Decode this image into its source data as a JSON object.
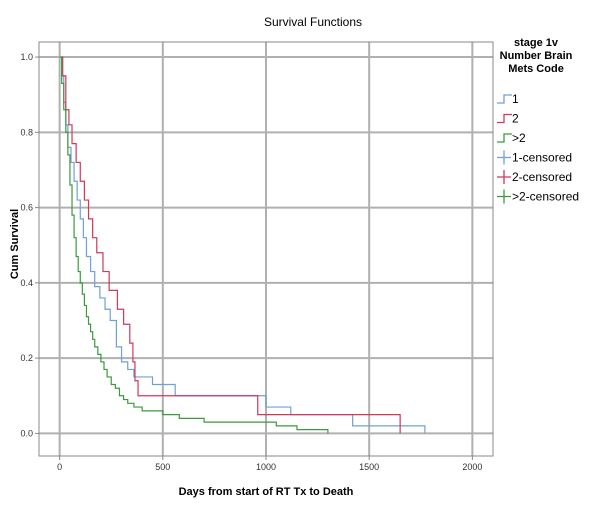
{
  "chart_data": {
    "type": "line",
    "title": "Survival Functions",
    "xlabel": "Days from start of RT Tx to Death",
    "ylabel": "Cum Survival",
    "xlim": [
      -100,
      2100
    ],
    "ylim": [
      -0.06,
      1.04
    ],
    "x_ticks": [
      0,
      500,
      1000,
      1500,
      2000
    ],
    "y_ticks": [
      0.0,
      0.2,
      0.4,
      0.6,
      0.8,
      1.0
    ],
    "x_tick_labels": [
      "0",
      "500",
      "1000",
      "1500",
      "2000"
    ],
    "y_tick_labels": [
      "0.0",
      "0.2",
      "0.4",
      "0.6",
      "0.8",
      "1.0"
    ],
    "grid": true,
    "legend": {
      "title": "stage 1v Number Brain Mets Code",
      "title_lines": [
        "stage 1v",
        "Number Brain",
        "Mets Code"
      ],
      "placement": "right",
      "entries": [
        {
          "label": "1",
          "kind": "step",
          "color": "#6fa0d8"
        },
        {
          "label": "2",
          "kind": "step",
          "color": "#d0385c"
        },
        {
          "label": ">2",
          "kind": "step",
          "color": "#3c9a3c"
        },
        {
          "label": "1-censored",
          "kind": "censor",
          "color": "#6fa0d8"
        },
        {
          "label": "2-censored",
          "kind": "censor",
          "color": "#d0385c"
        },
        {
          "label": ">2-censored",
          "kind": "censor",
          "color": "#3c9a3c"
        }
      ]
    },
    "series": [
      {
        "name": "1",
        "color": "#6fa0d8",
        "points": [
          [
            0,
            1.0
          ],
          [
            10,
            0.95
          ],
          [
            20,
            0.88
          ],
          [
            30,
            0.82
          ],
          [
            40,
            0.76
          ],
          [
            55,
            0.72
          ],
          [
            70,
            0.67
          ],
          [
            85,
            0.62
          ],
          [
            100,
            0.57
          ],
          [
            115,
            0.52
          ],
          [
            130,
            0.47
          ],
          [
            150,
            0.43
          ],
          [
            170,
            0.39
          ],
          [
            195,
            0.36
          ],
          [
            220,
            0.33
          ],
          [
            245,
            0.3
          ],
          [
            275,
            0.23
          ],
          [
            300,
            0.19
          ],
          [
            330,
            0.17
          ],
          [
            360,
            0.15
          ],
          [
            420,
            0.15
          ],
          [
            450,
            0.13
          ],
          [
            520,
            0.13
          ],
          [
            560,
            0.1
          ],
          [
            960,
            0.1
          ],
          [
            1000,
            0.07
          ],
          [
            1080,
            0.07
          ],
          [
            1120,
            0.05
          ],
          [
            1380,
            0.05
          ],
          [
            1420,
            0.02
          ],
          [
            1770,
            0.02
          ],
          [
            1770,
            0.0
          ]
        ]
      },
      {
        "name": "2",
        "color": "#d0385c",
        "points": [
          [
            0,
            1.0
          ],
          [
            15,
            0.95
          ],
          [
            30,
            0.86
          ],
          [
            45,
            0.82
          ],
          [
            60,
            0.77
          ],
          [
            80,
            0.72
          ],
          [
            100,
            0.67
          ],
          [
            120,
            0.62
          ],
          [
            140,
            0.57
          ],
          [
            160,
            0.52
          ],
          [
            180,
            0.48
          ],
          [
            210,
            0.43
          ],
          [
            240,
            0.38
          ],
          [
            280,
            0.33
          ],
          [
            310,
            0.29
          ],
          [
            340,
            0.24
          ],
          [
            355,
            0.19
          ],
          [
            365,
            0.14
          ],
          [
            380,
            0.1
          ],
          [
            960,
            0.1
          ],
          [
            960,
            0.05
          ],
          [
            1650,
            0.05
          ],
          [
            1650,
            0.0
          ]
        ]
      },
      {
        "name": ">2",
        "color": "#3c9a3c",
        "points": [
          [
            0,
            1.0
          ],
          [
            10,
            0.93
          ],
          [
            20,
            0.86
          ],
          [
            30,
            0.8
          ],
          [
            40,
            0.74
          ],
          [
            50,
            0.66
          ],
          [
            60,
            0.58
          ],
          [
            70,
            0.52
          ],
          [
            80,
            0.47
          ],
          [
            90,
            0.43
          ],
          [
            100,
            0.4
          ],
          [
            110,
            0.37
          ],
          [
            120,
            0.34
          ],
          [
            130,
            0.31
          ],
          [
            140,
            0.29
          ],
          [
            150,
            0.27
          ],
          [
            160,
            0.25
          ],
          [
            170,
            0.23
          ],
          [
            185,
            0.21
          ],
          [
            200,
            0.19
          ],
          [
            215,
            0.17
          ],
          [
            230,
            0.15
          ],
          [
            250,
            0.13
          ],
          [
            270,
            0.12
          ],
          [
            290,
            0.1
          ],
          [
            310,
            0.09
          ],
          [
            330,
            0.08
          ],
          [
            360,
            0.07
          ],
          [
            400,
            0.06
          ],
          [
            450,
            0.06
          ],
          [
            500,
            0.05
          ],
          [
            580,
            0.04
          ],
          [
            700,
            0.03
          ],
          [
            1000,
            0.03
          ],
          [
            1050,
            0.02
          ],
          [
            1150,
            0.01
          ],
          [
            1300,
            0.01
          ],
          [
            1300,
            0.0
          ]
        ]
      }
    ]
  }
}
